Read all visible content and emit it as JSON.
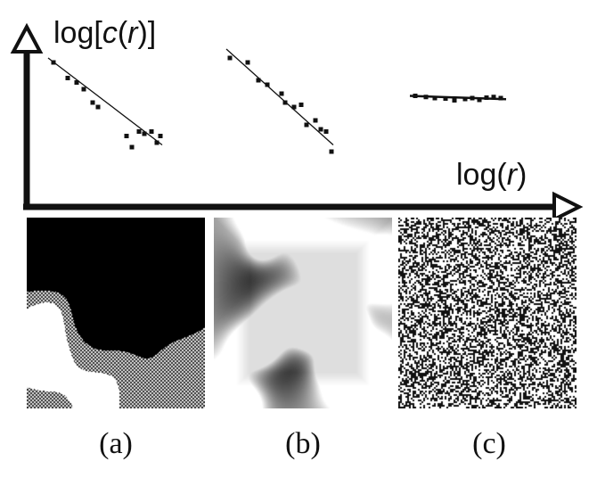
{
  "chart_data": {
    "type": "scatter",
    "yaxis_label": {
      "prefix": "log[",
      "var": "c",
      "mid": "(",
      "arg": "r",
      "suffix": ")]"
    },
    "xaxis_label": {
      "prefix": "log(",
      "arg": "r",
      "suffix": ")"
    },
    "grid": false,
    "legend": "none",
    "panels": [
      {
        "label": "(a)",
        "points": [
          [
            0.5,
            5.4
          ],
          [
            1.3,
            4.7
          ],
          [
            1.8,
            4.5
          ],
          [
            2.2,
            4.2
          ],
          [
            2.7,
            3.6
          ],
          [
            3.0,
            3.4
          ],
          [
            4.6,
            2.1
          ],
          [
            4.9,
            1.6
          ],
          [
            5.3,
            2.3
          ],
          [
            5.6,
            2.2
          ],
          [
            6.0,
            2.3
          ],
          [
            6.3,
            1.8
          ],
          [
            6.5,
            2.1
          ]
        ],
        "fit": {
          "from": [
            0.2,
            5.6
          ],
          "to": [
            6.6,
            1.7
          ]
        },
        "image": "patchy-binary"
      },
      {
        "label": "(b)",
        "points": [
          [
            0.4,
            5.6
          ],
          [
            1.4,
            5.4
          ],
          [
            2.0,
            4.6
          ],
          [
            2.5,
            4.4
          ],
          [
            3.3,
            4.0
          ],
          [
            3.5,
            3.6
          ],
          [
            4.0,
            3.4
          ],
          [
            4.4,
            3.5
          ],
          [
            4.7,
            2.6
          ],
          [
            5.2,
            2.8
          ],
          [
            5.5,
            2.4
          ],
          [
            5.8,
            2.3
          ],
          [
            6.1,
            1.4
          ]
        ],
        "fit": {
          "from": [
            0.2,
            6.0
          ],
          "to": [
            6.2,
            1.7
          ]
        },
        "image": "blurred-gray"
      },
      {
        "label": "(c)",
        "points": [
          [
            0.3,
            3.9
          ],
          [
            0.9,
            3.85
          ],
          [
            1.4,
            3.8
          ],
          [
            2.0,
            3.78
          ],
          [
            2.5,
            3.7
          ],
          [
            3.1,
            3.76
          ],
          [
            3.5,
            3.8
          ],
          [
            3.9,
            3.72
          ],
          [
            4.3,
            3.82
          ],
          [
            4.7,
            3.85
          ],
          [
            5.1,
            3.8
          ]
        ],
        "fit": {
          "from": [
            0.0,
            3.9
          ],
          "to": [
            5.4,
            3.75
          ]
        },
        "image": "random-noise"
      }
    ]
  },
  "colors": {
    "ink": "#111111",
    "background": "#ffffff"
  }
}
